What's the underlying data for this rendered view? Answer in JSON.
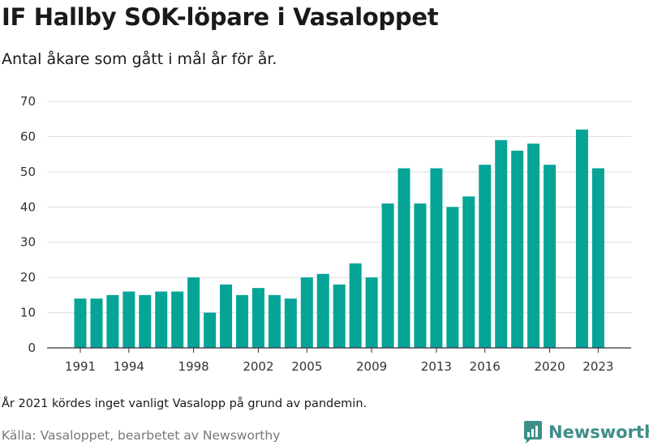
{
  "title": "IF Hallby SOK-löpare i Vasaloppet",
  "subtitle": "Antal åkare som gått i mål år för år.",
  "note": "År 2021 kördes inget vanligt Vasalopp på grund av pandemin.",
  "source": "Källa: Vasaloppet, bearbetet av Newsworthy",
  "brand": {
    "name": "Newsworthy",
    "icon": "newsworthy-logo-icon",
    "color": "#3e8e89"
  },
  "chart_data": {
    "type": "bar",
    "categories": [
      1991,
      1992,
      1993,
      1994,
      1995,
      1996,
      1997,
      1998,
      1999,
      2000,
      2001,
      2002,
      2003,
      2004,
      2005,
      2006,
      2007,
      2008,
      2009,
      2010,
      2011,
      2012,
      2013,
      2014,
      2015,
      2016,
      2017,
      2018,
      2019,
      2020,
      2021,
      2022,
      2023
    ],
    "values": [
      14,
      14,
      15,
      16,
      15,
      16,
      16,
      20,
      10,
      18,
      15,
      17,
      15,
      14,
      20,
      21,
      18,
      24,
      20,
      41,
      51,
      41,
      51,
      40,
      43,
      52,
      59,
      56,
      58,
      52,
      null,
      62,
      51
    ],
    "x_tick_labels": [
      "1991",
      "1994",
      "1998",
      "2002",
      "2005",
      "2009",
      "2013",
      "2016",
      "2020",
      "2023"
    ],
    "y_tick_labels": [
      "0",
      "10",
      "20",
      "30",
      "40",
      "50",
      "60",
      "70"
    ],
    "ylim": [
      0,
      70
    ],
    "grid": true,
    "bar_color": "#05a497"
  }
}
